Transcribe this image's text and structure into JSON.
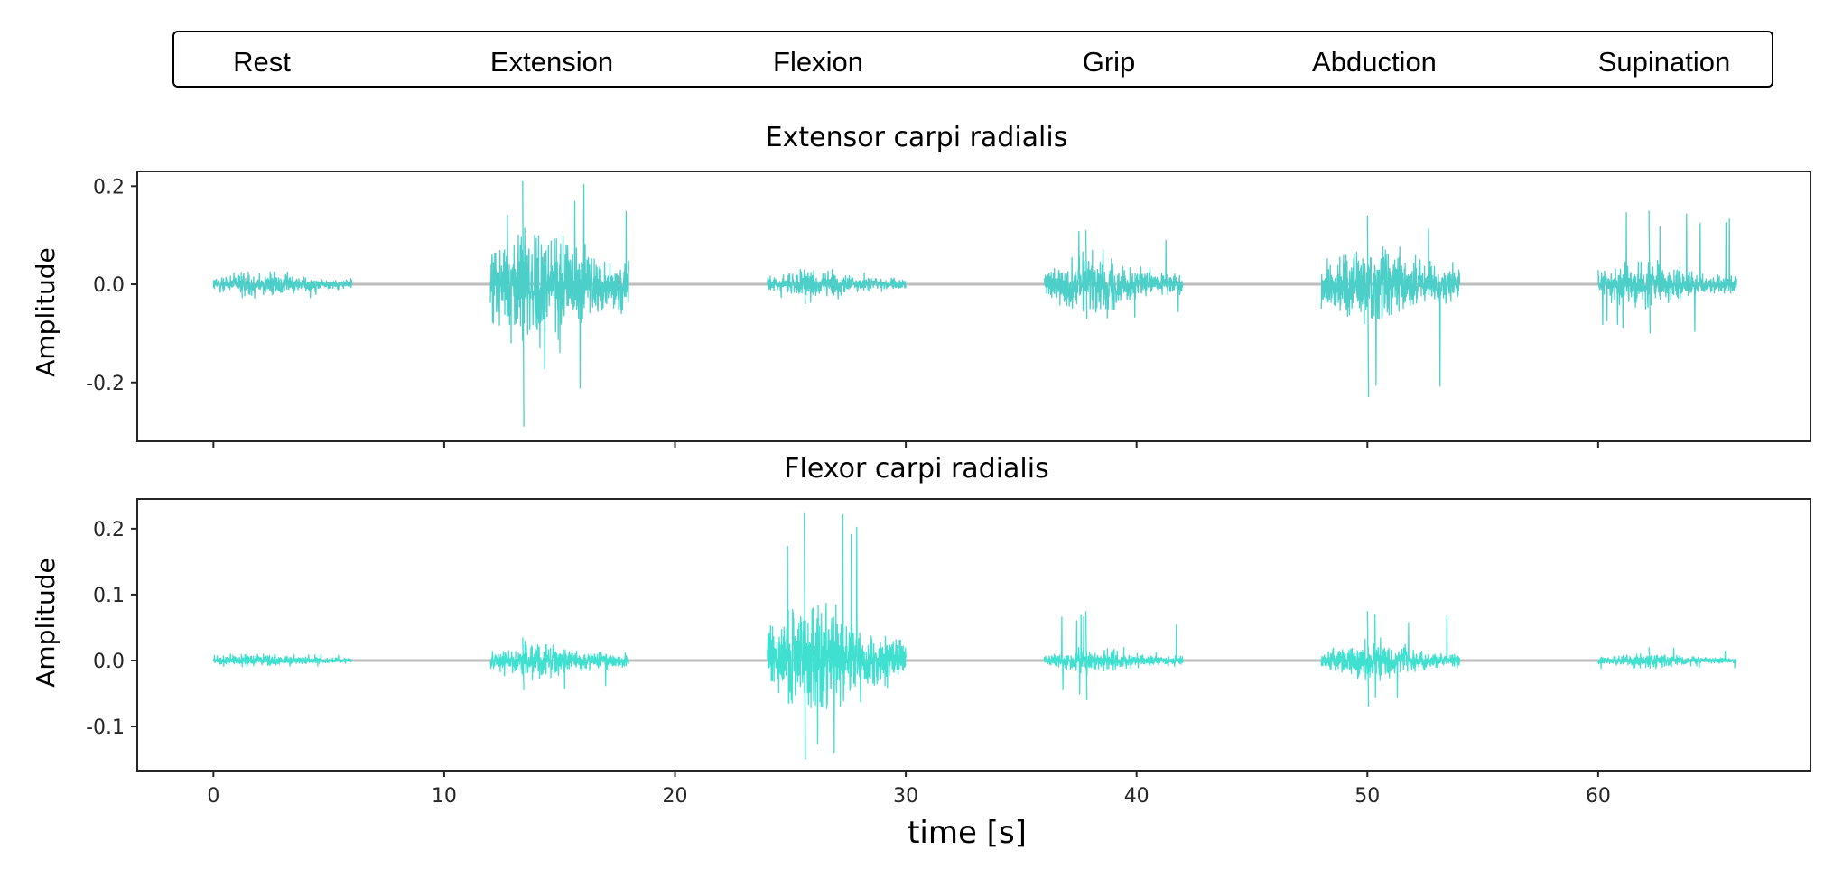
{
  "chart_data": {
    "type": "line",
    "legend": {
      "position": "top",
      "entries": [
        "Rest",
        "Extension",
        "Flexion",
        "Grip",
        "Abduction",
        "Supination"
      ]
    },
    "xlabel": "time [s]",
    "xlim": [
      -3.3,
      69.2
    ],
    "xticks": [
      0,
      10,
      20,
      30,
      40,
      50,
      60
    ],
    "segments": [
      {
        "label": "Rest",
        "start": 0,
        "end": 6
      },
      {
        "label": "Extension",
        "start": 12,
        "end": 18
      },
      {
        "label": "Flexion",
        "start": 24,
        "end": 30
      },
      {
        "label": "Grip",
        "start": 36,
        "end": 42
      },
      {
        "label": "Abduction",
        "start": 48,
        "end": 54
      },
      {
        "label": "Supination",
        "start": 60,
        "end": 66
      }
    ],
    "panels": [
      {
        "title": "Extensor carpi radialis",
        "ylabel": "Amplitude",
        "ylim": [
          -0.32,
          0.23
        ],
        "yticks": [
          0.2,
          0.0,
          -0.2
        ],
        "ytick_labels": [
          "0.2",
          "0.0",
          "-0.2"
        ],
        "signal_color": "#4ccfc8",
        "baseline_color": "#bdbdbd",
        "series": [
          {
            "segment": "Rest",
            "typical_amplitude": 0.012,
            "peak_max": 0.025,
            "peak_min": -0.028
          },
          {
            "segment": "Extension",
            "typical_amplitude": 0.06,
            "peak_max": 0.21,
            "peak_min": -0.29
          },
          {
            "segment": "Flexion",
            "typical_amplitude": 0.012,
            "peak_max": 0.03,
            "peak_min": -0.04
          },
          {
            "segment": "Grip",
            "typical_amplitude": 0.025,
            "peak_max": 0.11,
            "peak_min": -0.07
          },
          {
            "segment": "Abduction",
            "typical_amplitude": 0.04,
            "peak_max": 0.14,
            "peak_min": -0.23
          },
          {
            "segment": "Supination",
            "typical_amplitude": 0.02,
            "peak_max": 0.15,
            "peak_min": -0.1
          }
        ]
      },
      {
        "title": "Flexor carpi radialis",
        "ylabel": "Amplitude",
        "ylim": [
          -0.167,
          0.245
        ],
        "yticks": [
          0.2,
          0.1,
          0.0,
          -0.1
        ],
        "ytick_labels": [
          "0.2",
          "0.1",
          "0.0",
          "-0.1"
        ],
        "signal_color": "#40e0d0",
        "baseline_color": "#bdbdbd",
        "series": [
          {
            "segment": "Rest",
            "typical_amplitude": 0.004,
            "peak_max": 0.01,
            "peak_min": -0.01
          },
          {
            "segment": "Extension",
            "typical_amplitude": 0.012,
            "peak_max": 0.035,
            "peak_min": -0.045
          },
          {
            "segment": "Flexion",
            "typical_amplitude": 0.04,
            "peak_max": 0.225,
            "peak_min": -0.15
          },
          {
            "segment": "Grip",
            "typical_amplitude": 0.008,
            "peak_max": 0.075,
            "peak_min": -0.06
          },
          {
            "segment": "Abduction",
            "typical_amplitude": 0.012,
            "peak_max": 0.075,
            "peak_min": -0.07
          },
          {
            "segment": "Supination",
            "typical_amplitude": 0.005,
            "peak_max": 0.02,
            "peak_min": -0.012
          }
        ]
      }
    ]
  }
}
